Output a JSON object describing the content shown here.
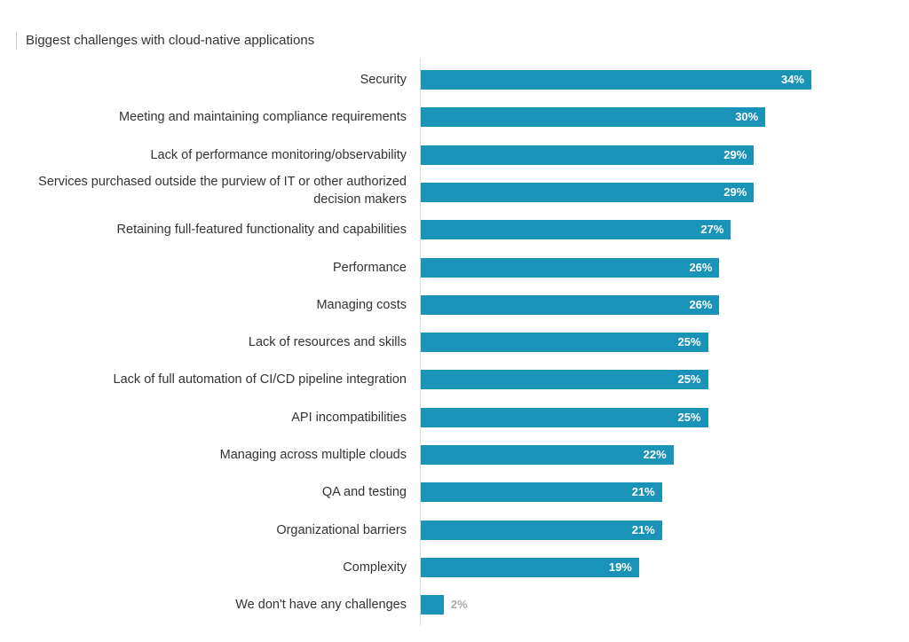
{
  "chart_data": {
    "type": "bar",
    "orientation": "horizontal",
    "title": "Biggest challenges with cloud-native applications",
    "categories": [
      "Security",
      "Meeting and maintaining compliance requirements",
      "Lack of performance monitoring/observability",
      "Services purchased outside the purview of IT or other authorized decision makers",
      "Retaining full-featured functionality and capabilities",
      "Performance",
      "Managing costs",
      "Lack of resources and skills",
      "Lack of full automation of CI/CD pipeline integration",
      "API incompatibilities",
      "Managing across multiple clouds",
      "QA and testing",
      "Organizational barriers",
      "Complexity",
      "We don't have any challenges"
    ],
    "values": [
      34,
      30,
      29,
      29,
      27,
      26,
      26,
      25,
      25,
      25,
      22,
      21,
      21,
      19,
      2
    ],
    "value_labels": [
      "34%",
      "30%",
      "29%",
      "29%",
      "27%",
      "26%",
      "26%",
      "25%",
      "25%",
      "25%",
      "22%",
      "21%",
      "21%",
      "19%",
      "2%"
    ],
    "color": "#1a93b8"
  }
}
